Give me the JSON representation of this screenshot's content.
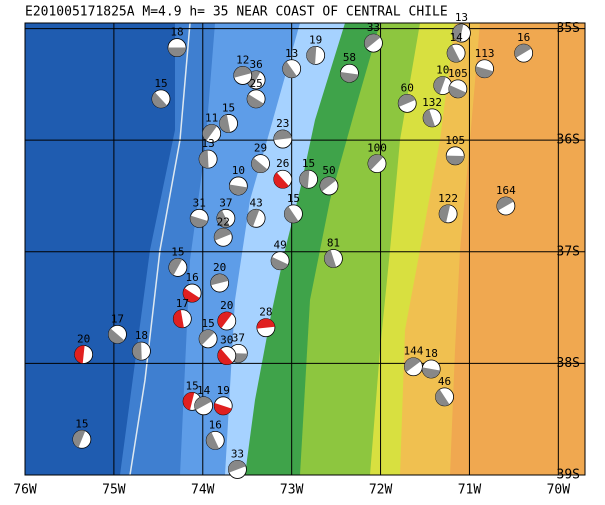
{
  "chart_data": {
    "type": "focal-map",
    "title": "E201005171825A  M=4.9  h= 35  NEAR COAST OF CENTRAL CHILE",
    "xlim": [
      -76,
      -69.7
    ],
    "ylim": [
      -39,
      -34.95
    ],
    "xticks": [
      {
        "value": -76,
        "label": "76W"
      },
      {
        "value": -75,
        "label": "75W"
      },
      {
        "value": -74,
        "label": "74W"
      },
      {
        "value": -73,
        "label": "73W"
      },
      {
        "value": -72,
        "label": "72W"
      },
      {
        "value": -71,
        "label": "71W"
      },
      {
        "value": -70,
        "label": "70W"
      }
    ],
    "yticks": [
      {
        "value": -35,
        "label": "35S"
      },
      {
        "value": -36,
        "label": "36S"
      },
      {
        "value": -37,
        "label": "37S"
      },
      {
        "value": -38,
        "label": "38S"
      },
      {
        "value": -39,
        "label": "39S"
      }
    ],
    "grid": true,
    "events": [
      {
        "lon": -74.29,
        "lat": -35.17,
        "depth": 18,
        "color": "#888888"
      },
      {
        "lon": -74.47,
        "lat": -35.63,
        "depth": 15,
        "color": "#888888"
      },
      {
        "lon": -72.73,
        "lat": -35.24,
        "depth": 19,
        "color": "#888888"
      },
      {
        "lon": -72.08,
        "lat": -35.13,
        "depth": 33,
        "color": "#888888"
      },
      {
        "lon": -72.35,
        "lat": -35.4,
        "depth": 58,
        "color": "#888888"
      },
      {
        "lon": -73.0,
        "lat": -35.36,
        "depth": 13,
        "color": "#888888"
      },
      {
        "lon": -71.09,
        "lat": -35.04,
        "depth": 13,
        "color": "#888888"
      },
      {
        "lon": -70.39,
        "lat": -35.22,
        "depth": 16,
        "color": "#888888"
      },
      {
        "lon": -70.83,
        "lat": -35.36,
        "depth": 113,
        "color": "#888888"
      },
      {
        "lon": -71.15,
        "lat": -35.22,
        "depth": 14,
        "color": "#888888"
      },
      {
        "lon": -71.3,
        "lat": -35.51,
        "depth": 10,
        "color": "#888888"
      },
      {
        "lon": -71.7,
        "lat": -35.67,
        "depth": 60,
        "color": "#888888"
      },
      {
        "lon": -71.13,
        "lat": -35.54,
        "depth": 105,
        "color": "#888888"
      },
      {
        "lon": -71.42,
        "lat": -35.8,
        "depth": 132,
        "color": "#888888"
      },
      {
        "lon": -73.4,
        "lat": -35.46,
        "depth": 36,
        "color": "#888888"
      },
      {
        "lon": -73.55,
        "lat": -35.42,
        "depth": 12,
        "color": "#888888"
      },
      {
        "lon": -73.4,
        "lat": -35.63,
        "depth": 25,
        "color": "#888888"
      },
      {
        "lon": -73.71,
        "lat": -35.85,
        "depth": 15,
        "color": "#888888"
      },
      {
        "lon": -73.9,
        "lat": -35.94,
        "depth": 11,
        "color": "#888888"
      },
      {
        "lon": -73.1,
        "lat": -35.99,
        "depth": 23,
        "color": "#888888"
      },
      {
        "lon": -73.35,
        "lat": -36.21,
        "depth": 29,
        "color": "#888888"
      },
      {
        "lon": -73.94,
        "lat": -36.17,
        "depth": 13,
        "color": "#888888"
      },
      {
        "lon": -72.04,
        "lat": -36.21,
        "depth": 100,
        "color": "#888888"
      },
      {
        "lon": -71.16,
        "lat": -36.14,
        "depth": 105,
        "color": "#888888"
      },
      {
        "lon": -73.1,
        "lat": -36.35,
        "depth": 26,
        "color": "#e02020"
      },
      {
        "lon": -72.81,
        "lat": -36.35,
        "depth": 15,
        "color": "#888888"
      },
      {
        "lon": -72.58,
        "lat": -36.41,
        "depth": 50,
        "color": "#888888"
      },
      {
        "lon": -73.6,
        "lat": -36.41,
        "depth": 10,
        "color": "#888888"
      },
      {
        "lon": -72.98,
        "lat": -36.66,
        "depth": 15,
        "color": "#888888"
      },
      {
        "lon": -71.24,
        "lat": -36.66,
        "depth": 122,
        "color": "#888888"
      },
      {
        "lon": -70.59,
        "lat": -36.59,
        "depth": 164,
        "color": "#888888"
      },
      {
        "lon": -74.04,
        "lat": -36.7,
        "depth": 31,
        "color": "#888888"
      },
      {
        "lon": -73.74,
        "lat": -36.7,
        "depth": 37,
        "color": "#888888"
      },
      {
        "lon": -73.4,
        "lat": -36.7,
        "depth": 43,
        "color": "#888888"
      },
      {
        "lon": -73.77,
        "lat": -36.87,
        "depth": 22,
        "color": "#888888"
      },
      {
        "lon": -73.13,
        "lat": -37.08,
        "depth": 49,
        "color": "#888888"
      },
      {
        "lon": -72.53,
        "lat": -37.06,
        "depth": 81,
        "color": "#888888"
      },
      {
        "lon": -74.28,
        "lat": -37.14,
        "depth": 15,
        "color": "#888888"
      },
      {
        "lon": -73.81,
        "lat": -37.28,
        "depth": 20,
        "color": "#888888"
      },
      {
        "lon": -74.12,
        "lat": -37.37,
        "depth": 16,
        "color": "#e02020"
      },
      {
        "lon": -74.23,
        "lat": -37.6,
        "depth": 17,
        "color": "#e02020"
      },
      {
        "lon": -73.73,
        "lat": -37.62,
        "depth": 20,
        "color": "#e02020"
      },
      {
        "lon": -73.29,
        "lat": -37.68,
        "depth": 28,
        "color": "#e02020"
      },
      {
        "lon": -74.96,
        "lat": -37.74,
        "depth": 17,
        "color": "#888888"
      },
      {
        "lon": -74.69,
        "lat": -37.89,
        "depth": 18,
        "color": "#888888"
      },
      {
        "lon": -73.94,
        "lat": -37.78,
        "depth": 15,
        "color": "#888888"
      },
      {
        "lon": -73.6,
        "lat": -37.91,
        "depth": 37,
        "color": "#888888"
      },
      {
        "lon": -73.73,
        "lat": -37.93,
        "depth": 30,
        "color": "#e02020"
      },
      {
        "lon": -75.34,
        "lat": -37.92,
        "depth": 20,
        "color": "#e02020"
      },
      {
        "lon": -71.63,
        "lat": -38.03,
        "depth": 144,
        "color": "#888888"
      },
      {
        "lon": -71.43,
        "lat": -38.05,
        "depth": 18,
        "color": "#888888"
      },
      {
        "lon": -71.28,
        "lat": -38.3,
        "depth": 46,
        "color": "#888888"
      },
      {
        "lon": -74.12,
        "lat": -38.34,
        "depth": 15,
        "color": "#e02020"
      },
      {
        "lon": -73.99,
        "lat": -38.38,
        "depth": 14,
        "color": "#888888"
      },
      {
        "lon": -73.77,
        "lat": -38.38,
        "depth": 19,
        "color": "#e02020"
      },
      {
        "lon": -73.86,
        "lat": -38.69,
        "depth": 16,
        "color": "#888888"
      },
      {
        "lon": -75.36,
        "lat": -38.68,
        "depth": 15,
        "color": "#888888"
      },
      {
        "lon": -73.61,
        "lat": -38.95,
        "depth": 33,
        "color": "#888888"
      }
    ]
  }
}
